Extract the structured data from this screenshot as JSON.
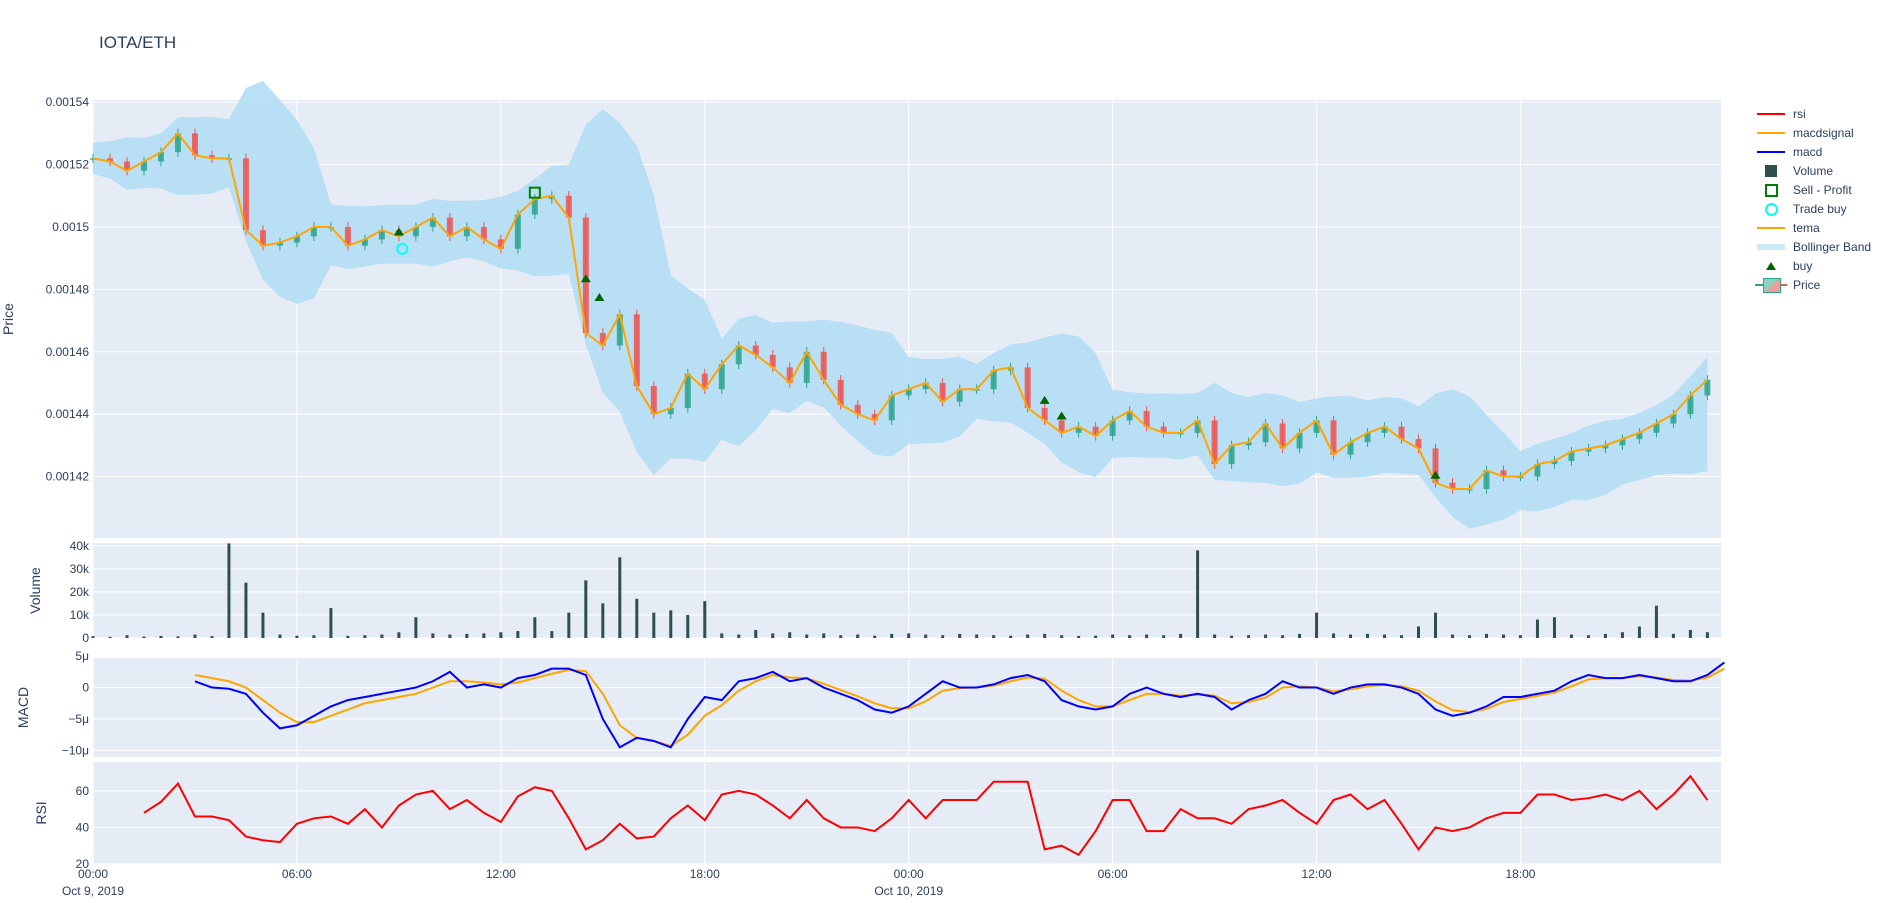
{
  "title": "IOTA/ETH",
  "colors": {
    "plot_bg": "#E5ECF6",
    "up": "#2CA58D",
    "down": "#EF5350",
    "tema": "#FFA500",
    "band": "#B4DEF5",
    "macd": "#0000FF",
    "macdsignal": "#FFA500",
    "rsi": "#FF0000",
    "volume": "#2F4F4F",
    "buy": "#006400",
    "sell": "#008000",
    "trade_buy": "#00FFFF"
  },
  "legend": [
    {
      "label": "rsi",
      "icon": "red-line"
    },
    {
      "label": "macdsignal",
      "icon": "orange-line"
    },
    {
      "label": "macd",
      "icon": "blue-line"
    },
    {
      "label": "Volume",
      "icon": "dark-square"
    },
    {
      "label": "Sell - Profit",
      "icon": "green-open-square"
    },
    {
      "label": "Trade buy",
      "icon": "cyan-open-circle"
    },
    {
      "label": "tema",
      "icon": "orange-line"
    },
    {
      "label": "Bollinger Band",
      "icon": "light-blue-band"
    },
    {
      "label": "buy",
      "icon": "green-triangle-up"
    },
    {
      "label": "Price",
      "icon": "candlestick"
    }
  ],
  "chart_data": {
    "type": "candlestick",
    "x_start": "2019-10-09 00:00",
    "interval": "30min",
    "x_ticks": [
      {
        "hour": 0,
        "label": "00:00",
        "sub": "Oct 9, 2019"
      },
      {
        "hour": 6,
        "label": "06:00",
        "sub": ""
      },
      {
        "hour": 12,
        "label": "12:00",
        "sub": ""
      },
      {
        "hour": 18,
        "label": "18:00",
        "sub": ""
      },
      {
        "hour": 24,
        "label": "00:00",
        "sub": "Oct 10, 2019"
      },
      {
        "hour": 30,
        "label": "06:00",
        "sub": ""
      },
      {
        "hour": 36,
        "label": "12:00",
        "sub": ""
      },
      {
        "hour": 42,
        "label": "18:00",
        "sub": ""
      }
    ],
    "x_range_hours": [
      0,
      47.9
    ],
    "price": {
      "ylabel": "Price",
      "ylim": [
        0.0014003,
        0.0015407
      ],
      "ticks": [
        {
          "v": 0.00142,
          "label": "0.00142"
        },
        {
          "v": 0.00144,
          "label": "0.00144"
        },
        {
          "v": 0.00146,
          "label": "0.00146"
        },
        {
          "v": 0.00148,
          "label": "0.00148"
        },
        {
          "v": 0.0015,
          "label": "0.0015"
        },
        {
          "v": 0.00152,
          "label": "0.00152"
        },
        {
          "v": 0.00154,
          "label": "0.00154"
        }
      ],
      "close": [
        0.001522,
        0.001521,
        0.001518,
        0.001521,
        0.001524,
        0.00153,
        0.001523,
        0.001522,
        0.001522,
        0.001499,
        0.001494,
        0.001495,
        0.001497,
        0.0015,
        0.0015,
        0.001494,
        0.001496,
        0.001499,
        0.001497,
        0.0015,
        0.001503,
        0.001497,
        0.0015,
        0.001496,
        0.001493,
        0.001504,
        0.001509,
        0.00151,
        0.001503,
        0.001466,
        0.001462,
        0.001472,
        0.001449,
        0.00144,
        0.001442,
        0.001453,
        0.001448,
        0.001456,
        0.001462,
        0.001459,
        0.001455,
        0.00145,
        0.00146,
        0.001451,
        0.001443,
        0.00144,
        0.001438,
        0.001446,
        0.001448,
        0.00145,
        0.001444,
        0.001448,
        0.001448,
        0.001454,
        0.001455,
        0.001442,
        0.001438,
        0.001434,
        0.001436,
        0.001433,
        0.001438,
        0.001441,
        0.001436,
        0.001434,
        0.001434,
        0.001438,
        0.001424,
        0.00143,
        0.001431,
        0.001437,
        0.001429,
        0.001434,
        0.001438,
        0.001427,
        0.001431,
        0.001434,
        0.001436,
        0.001432,
        0.001429,
        0.001418,
        0.001416,
        0.001416,
        0.001422,
        0.00142,
        0.00142,
        0.001424,
        0.001425,
        0.001428,
        0.001429,
        0.00143,
        0.001432,
        0.001434,
        0.001437,
        0.00144,
        0.001446,
        0.001451
      ],
      "buy_signals": [
        {
          "hour": 9.0,
          "price": 0.001496
        },
        {
          "hour": 14.5,
          "price": 0.001481
        },
        {
          "hour": 14.9,
          "price": 0.001475
        },
        {
          "hour": 28.0,
          "price": 0.001442
        },
        {
          "hour": 28.5,
          "price": 0.001437
        },
        {
          "hour": 39.5,
          "price": 0.001418
        }
      ],
      "trade_buy": [
        {
          "hour": 9.1,
          "price": 0.001493
        }
      ],
      "sell_profit": [
        {
          "hour": 13.0,
          "price": 0.001511
        }
      ]
    },
    "volume": {
      "ylabel": "Volume",
      "ylim": [
        0,
        41200
      ],
      "ticks": [
        {
          "v": 0,
          "label": "0"
        },
        {
          "v": 10000,
          "label": "10k"
        },
        {
          "v": 20000,
          "label": "20k"
        },
        {
          "v": 30000,
          "label": "30k"
        },
        {
          "v": 40000,
          "label": "40k"
        }
      ],
      "values": [
        800,
        500,
        1200,
        600,
        900,
        700,
        1500,
        800,
        41000,
        24000,
        11000,
        1500,
        1000,
        1200,
        13000,
        900,
        1200,
        1500,
        2500,
        9000,
        2000,
        1500,
        1800,
        2000,
        2500,
        3000,
        9000,
        3000,
        11000,
        25000,
        15000,
        35000,
        17000,
        11000,
        12000,
        10000,
        16000,
        2000,
        1500,
        3500,
        2000,
        2500,
        1500,
        2000,
        1200,
        1500,
        1000,
        1800,
        2000,
        1500,
        1200,
        1800,
        1500,
        1200,
        1000,
        1500,
        1800,
        1200,
        900,
        1000,
        1500,
        1200,
        1500,
        1200,
        1800,
        38000,
        1500,
        1000,
        1200,
        1500,
        1200,
        1800,
        11000,
        2000,
        1500,
        1800,
        1500,
        1200,
        5000,
        11000,
        1500,
        1200,
        1800,
        1500,
        1200,
        8000,
        9000,
        1500,
        1200,
        1800,
        2500,
        5000,
        14000,
        1800,
        3500,
        2500
      ]
    },
    "macd": {
      "ylabel": "MACD",
      "ylim": [
        -1.105e-05,
        4.7e-06
      ],
      "ticks": [
        {
          "v": 5e-06,
          "label": "5μ"
        },
        {
          "v": 0,
          "label": "0"
        },
        {
          "v": -5e-06,
          "label": "−5μ"
        },
        {
          "v": -1e-05,
          "label": "−10μ"
        }
      ],
      "x_start_hour": 3.0,
      "macd": [
        1,
        0,
        -0.2,
        -1,
        -4,
        -6.5,
        -6,
        -4.5,
        -3,
        -2,
        -1.5,
        -1,
        -0.5,
        0,
        1,
        2.5,
        0,
        0.5,
        0,
        1.5,
        2,
        3,
        3,
        2,
        -5,
        -9.5,
        -8,
        -8.5,
        -9.5,
        -5,
        -1.5,
        -2,
        1,
        1.5,
        2.5,
        1,
        1.5,
        0,
        -1,
        -2,
        -3.5,
        -4,
        -3,
        -1,
        1,
        0,
        0,
        0.5,
        1.5,
        2,
        1,
        -2,
        -3,
        -3.5,
        -3,
        -1,
        0,
        -1,
        -1.5,
        -1,
        -1.5,
        -3.5,
        -2,
        -1,
        1,
        0,
        0,
        -1,
        0,
        0.5,
        0.5,
        0,
        -1,
        -3.5,
        -4.5,
        -4,
        -3,
        -1.5,
        -1.5,
        -1,
        -0.5,
        1,
        2,
        1.5,
        1.5,
        2,
        1.5,
        1,
        1,
        2,
        4
      ],
      "signal": [
        2,
        1.5,
        1,
        0,
        -2,
        -4,
        -5.5,
        -5.5,
        -4.5,
        -3.5,
        -2.5,
        -2,
        -1.5,
        -1,
        0,
        1,
        1,
        0.8,
        0.5,
        0.8,
        1.5,
        2.2,
        2.8,
        2.6,
        -1,
        -6,
        -8,
        -8.5,
        -9.3,
        -7.5,
        -4.5,
        -2.8,
        -0.5,
        1,
        2,
        1.6,
        1.5,
        0.6,
        -0.4,
        -1.4,
        -2.5,
        -3.3,
        -3.3,
        -2.2,
        -0.5,
        -0.1,
        0,
        0.3,
        1,
        1.6,
        1.4,
        -0.5,
        -2,
        -3,
        -3,
        -2,
        -1,
        -1,
        -1.3,
        -1.1,
        -1.3,
        -2.5,
        -2.3,
        -1.6,
        0,
        0.2,
        0,
        -0.6,
        -0.3,
        0.2,
        0.4,
        0.2,
        -0.5,
        -2.2,
        -3.6,
        -3.9,
        -3.4,
        -2.3,
        -1.8,
        -1.3,
        -0.8,
        0.2,
        1.3,
        1.5,
        1.5,
        1.8,
        1.6,
        1.2,
        1.1,
        1.6,
        3
      ]
    },
    "rsi": {
      "ylabel": "RSI",
      "ylim": [
        20,
        75.8
      ],
      "ticks": [
        {
          "v": 20,
          "label": "20"
        },
        {
          "v": 40,
          "label": "40"
        },
        {
          "v": 60,
          "label": "60"
        }
      ],
      "x_start_hour": 1.5,
      "values": [
        48,
        54,
        64,
        46,
        46,
        44,
        35,
        33,
        32,
        42,
        45,
        46,
        42,
        50,
        40,
        52,
        58,
        60,
        50,
        55,
        48,
        43,
        57,
        62,
        60,
        45,
        28,
        33,
        42,
        34,
        35,
        45,
        52,
        44,
        58,
        60,
        58,
        52,
        45,
        55,
        45,
        40,
        40,
        38,
        45,
        55,
        45,
        55,
        55,
        55,
        65,
        65,
        65,
        28,
        30,
        25,
        38,
        55,
        55,
        38,
        38,
        50,
        45,
        45,
        42,
        50,
        52,
        55,
        48,
        42,
        55,
        58,
        50,
        55,
        42,
        28,
        40,
        38,
        40,
        45,
        48,
        48,
        58,
        58,
        55,
        56,
        58,
        55,
        60,
        50,
        58,
        68,
        55
      ]
    }
  }
}
